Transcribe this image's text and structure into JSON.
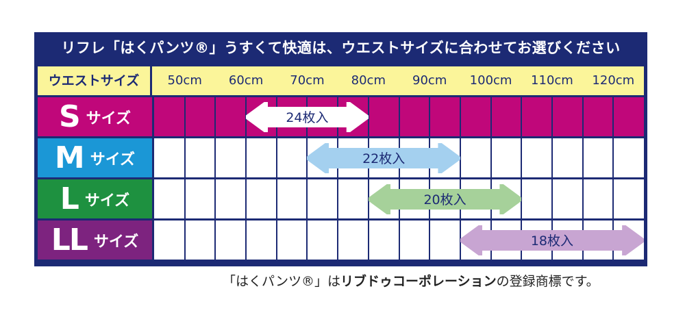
{
  "title": "リフレ「はくパンツ®」うすくて快適は、ウエストサイズに合わせてお選びください",
  "header": {
    "label": "ウエストサイズ",
    "ticks": [
      "50cm",
      "60cm",
      "70cm",
      "80cm",
      "90cm",
      "100cm",
      "110cm",
      "120cm"
    ]
  },
  "rows": [
    {
      "big": "S",
      "small": "サイズ",
      "label_color": "#c0077a",
      "fill": "#c0077a",
      "range_cm": [
        60,
        80
      ],
      "count": "24枚入",
      "arrow_color": "#ffffff"
    },
    {
      "big": "M",
      "small": "サイズ",
      "label_color": "#1b97d6",
      "fill": "#ffffff",
      "range_cm": [
        70,
        95
      ],
      "count": "22枚入",
      "arrow_color": "#a4d0ef"
    },
    {
      "big": "L",
      "small": "サイズ",
      "label_color": "#1e9140",
      "fill": "#ffffff",
      "range_cm": [
        80,
        105
      ],
      "count": "20枚入",
      "arrow_color": "#a6d19a"
    },
    {
      "big": "LL",
      "small": "サイズ",
      "label_color": "#7d237f",
      "fill": "#ffffff",
      "range_cm": [
        95,
        125
      ],
      "count": "18枚入",
      "arrow_color": "#c8a5d2"
    }
  ],
  "footnote": {
    "pre": "「はくパンツ®」は",
    "brand": "リブドゥコーポレーション",
    "post": "の登録商標です。"
  },
  "colors": {
    "navy": "#1c2a74",
    "header_yellow": "#fbf59a"
  }
}
